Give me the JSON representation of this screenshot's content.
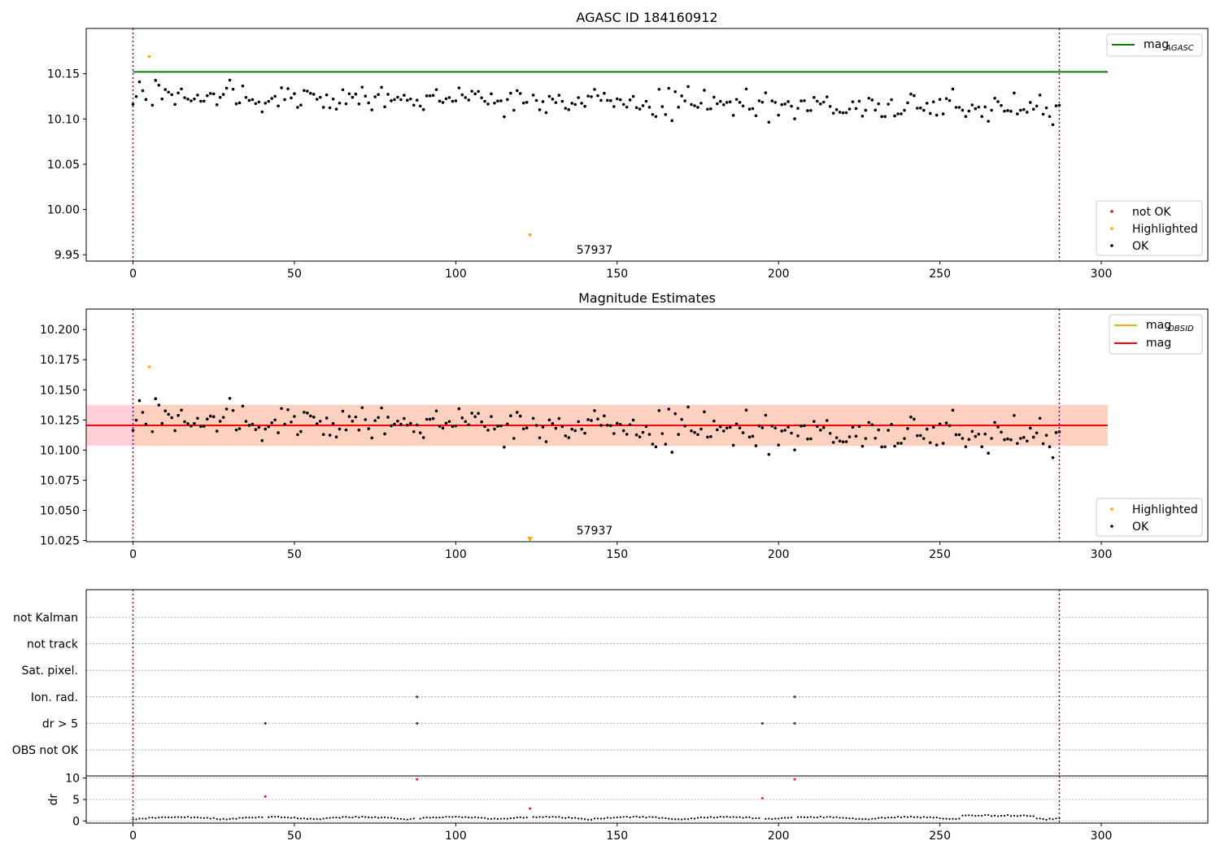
{
  "chart_data": [
    {
      "type": "scatter",
      "title": "AGASC ID 184160912",
      "annotation": "57937",
      "xlim": [
        -14.5,
        333
      ],
      "ylim": [
        9.943,
        10.2
      ],
      "xticks": [
        0,
        50,
        100,
        150,
        200,
        250,
        300
      ],
      "yticks": [
        "9.95",
        "10.00",
        "10.05",
        "10.10",
        "10.15"
      ],
      "ytick_values": [
        9.95,
        10.0,
        10.05,
        10.1,
        10.15
      ],
      "vlines": [
        0,
        287
      ],
      "vline_color": "#800080",
      "hlines": [
        {
          "name": "mag_AGASC",
          "y": 10.152,
          "x": [
            0,
            302
          ],
          "color": "#008000"
        }
      ],
      "legend_lines": [
        {
          "label": "mag",
          "sub": "AGASC",
          "color": "#008000"
        }
      ],
      "legend_markers": [
        {
          "label": "not OK",
          "color": "#ff0000"
        },
        {
          "label": "Highlighted",
          "color": "#ffa500"
        },
        {
          "label": "OK",
          "color": "#000000"
        }
      ],
      "highlighted": [
        {
          "x": 5,
          "y": 10.169
        },
        {
          "x": 123,
          "y": 9.972
        }
      ],
      "ok_x_range": [
        0,
        287
      ],
      "ok_y_summary": {
        "mean": 10.121,
        "min": 10.079,
        "max": 10.157
      }
    },
    {
      "type": "scatter",
      "title": "Magnitude Estimates",
      "annotation": "57937",
      "xlim": [
        -14.5,
        333
      ],
      "ylim": [
        10.024,
        10.217
      ],
      "xticks": [
        0,
        50,
        100,
        150,
        200,
        250,
        300
      ],
      "yticks": [
        "10.025",
        "10.050",
        "10.075",
        "10.100",
        "10.125",
        "10.150",
        "10.175",
        "10.200"
      ],
      "ytick_values": [
        10.025,
        10.05,
        10.075,
        10.1,
        10.125,
        10.15,
        10.175,
        10.2
      ],
      "vlines": [
        0,
        287
      ],
      "hlines": [
        {
          "name": "mag",
          "y": 10.1205,
          "x": [
            -14.5,
            302
          ],
          "color": "#ff0000"
        },
        {
          "name": "mag_OBSID",
          "y": 10.1205,
          "x": [
            0,
            302
          ],
          "color": "#ffa500"
        }
      ],
      "bands": [
        {
          "y": [
            10.1035,
            10.1375
          ],
          "x": [
            -14.5,
            302
          ],
          "color": "#ffc0cb"
        },
        {
          "y": [
            10.1035,
            10.1375
          ],
          "x": [
            0,
            302
          ],
          "color": "#fcd0b8"
        }
      ],
      "legend_lines": [
        {
          "label": "mag",
          "sub": "OBSID",
          "color": "#ffa500"
        },
        {
          "label": "mag",
          "sub": "",
          "color": "#ff0000"
        }
      ],
      "legend_markers": [
        {
          "label": "Highlighted",
          "color": "#ffa500"
        },
        {
          "label": "OK",
          "color": "#000000"
        }
      ],
      "highlighted": [
        {
          "x": 5,
          "y": 10.169
        },
        {
          "x": 123,
          "y": 10.026,
          "marker": "triangle-down"
        }
      ]
    },
    {
      "type": "scatter",
      "xlim": [
        -14.5,
        333
      ],
      "categories": [
        "not Kalman",
        "not track",
        "Sat. pixel.",
        "Ion. rad.",
        "dr > 5",
        "OBS not OK"
      ],
      "flags": [
        {
          "category": "Ion. rad.",
          "x": [
            88,
            205
          ]
        },
        {
          "category": "dr > 5",
          "x": [
            41,
            88,
            195,
            205
          ]
        }
      ],
      "vlines": [
        0,
        287
      ]
    },
    {
      "type": "scatter",
      "ylabel": "dr",
      "xlim": [
        -14.5,
        333
      ],
      "ylim": [
        -0.5,
        10.5
      ],
      "xticks": [
        0,
        50,
        100,
        150,
        200,
        250,
        300
      ],
      "yticks": [
        "0",
        "5",
        "10"
      ],
      "ytick_values": [
        0,
        5,
        10
      ],
      "vlines": [
        0,
        287
      ],
      "red_points": [
        {
          "x": 41,
          "y": 5.7
        },
        {
          "x": 88,
          "y": 9.7
        },
        {
          "x": 123,
          "y": 2.9
        },
        {
          "x": 195,
          "y": 5.3
        },
        {
          "x": 205,
          "y": 9.7
        }
      ],
      "baseline_summary": {
        "typical_dr": 0.6
      }
    }
  ]
}
